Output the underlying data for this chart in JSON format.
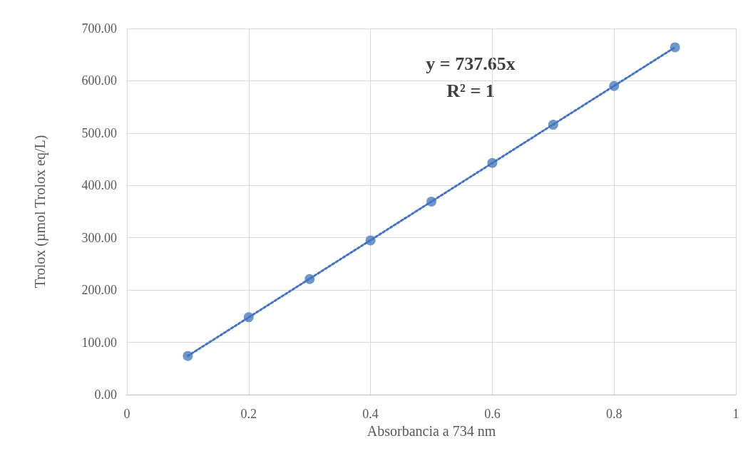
{
  "chart_data": {
    "type": "scatter",
    "xlabel": "Absorbancia a 734 nm",
    "ylabel": "Trolox (µmol Trolox eq/L)",
    "annotations": [
      "y = 737.65x",
      "R² = 1"
    ],
    "xlim": [
      0,
      1
    ],
    "xticks": [
      0,
      0.2,
      0.4,
      0.6,
      0.8,
      1
    ],
    "ylim": [
      0,
      700
    ],
    "yticks": [
      {
        "value": 0,
        "label": "0.00"
      },
      {
        "value": 100,
        "label": "100.00"
      },
      {
        "value": 200,
        "label": "200.00"
      },
      {
        "value": 300,
        "label": "300.00"
      },
      {
        "value": 400,
        "label": "400.00"
      },
      {
        "value": 500,
        "label": "500.00"
      },
      {
        "value": 600,
        "label": "600.00"
      },
      {
        "value": 700,
        "label": "700.00"
      }
    ],
    "grid": true,
    "series": [
      {
        "color": "#4a7ebb",
        "marker": "circle",
        "x": [
          0.1,
          0.2,
          0.3,
          0.4,
          0.5,
          0.6,
          0.7,
          0.8,
          0.9
        ],
        "values": [
          74,
          148,
          221,
          295,
          369,
          443,
          516,
          590,
          664
        ]
      },
      {
        "type": "line",
        "color": "#4472c4",
        "marker": "none",
        "line_style": "dotted",
        "x": [
          0.1,
          0.9
        ],
        "values": [
          74,
          664
        ]
      }
    ]
  }
}
